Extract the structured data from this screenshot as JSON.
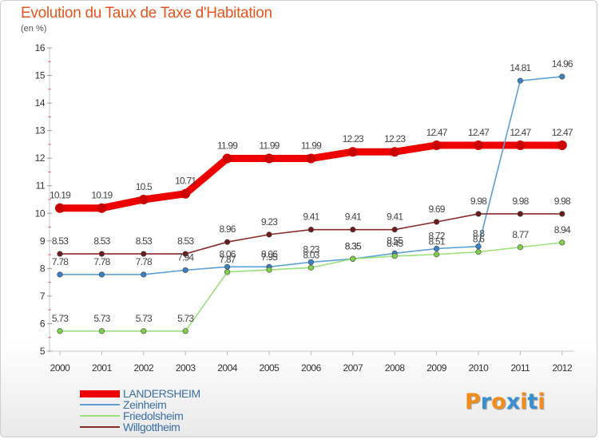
{
  "title": "Evolution du Taux de Taxe d'Habitation",
  "subtitle": "(en %)",
  "logo": {
    "text": "Proxiti",
    "colors": [
      "#f28c1a",
      "#3a8fd0",
      "#f28c1a",
      "#3a8fd0",
      "#f28c1a",
      "#3a8fd0",
      "#f28c1a"
    ]
  },
  "chart_data": {
    "type": "line",
    "title": "Evolution du Taux de Taxe d'Habitation",
    "ylabel": "(en %)",
    "xlabel": "",
    "categories": [
      "2000",
      "2001",
      "2002",
      "2003",
      "2004",
      "2005",
      "2006",
      "2007",
      "2008",
      "2009",
      "2010",
      "2011",
      "2012"
    ],
    "ylim": [
      5,
      16
    ],
    "yticks": [
      "5",
      "6",
      "7",
      "8",
      "9",
      "10",
      "11",
      "12",
      "13",
      "14",
      "15",
      "16"
    ],
    "grid": false,
    "legend": "bottom-left",
    "series": [
      {
        "name": "LANDERSHEIM",
        "color": "#ee0000",
        "dot": "#cc0000",
        "thick": true,
        "values": [
          10.19,
          10.19,
          10.5,
          10.71,
          11.99,
          11.99,
          11.99,
          12.23,
          12.23,
          12.47,
          12.47,
          12.47,
          12.47
        ],
        "labels": [
          "10.19",
          "10.19",
          "10.5",
          "10.71",
          "11.99",
          "11.99",
          "11.99",
          "12.23",
          "12.23",
          "12.47",
          "12.47",
          "12.47",
          "12.47"
        ]
      },
      {
        "name": "Zeinheim",
        "color": "#5b9fd6",
        "dot": "#3a7fc0",
        "thick": false,
        "values": [
          7.78,
          7.78,
          7.78,
          7.94,
          8.06,
          8.06,
          8.23,
          8.35,
          8.55,
          8.72,
          8.8,
          14.81,
          14.96
        ],
        "labels": [
          "7.78",
          "7.78",
          "7.78",
          "7.94",
          "8.06",
          "8.06",
          "8.23",
          "8.35",
          "8.55",
          "8.72",
          "8.8",
          "14.81",
          "14.96"
        ]
      },
      {
        "name": "Friedolsheim",
        "color": "#9be07a",
        "dot": "#7fcf4d",
        "thick": false,
        "values": [
          5.73,
          5.73,
          5.73,
          5.73,
          7.87,
          7.95,
          8.03,
          8.35,
          8.45,
          8.51,
          8.6,
          8.77,
          8.94
        ],
        "labels": [
          "5.73",
          "5.73",
          "5.73",
          "5.73",
          "7.87",
          "7.95",
          "8.03",
          "8.35",
          "8.45",
          "8.51",
          "8.6",
          "8.77",
          "8.94"
        ]
      },
      {
        "name": "Willgottheim",
        "color": "#8a2a2a",
        "dot": "#6b1b1b",
        "thick": false,
        "values": [
          8.53,
          8.53,
          8.53,
          8.53,
          8.96,
          9.23,
          9.41,
          9.41,
          9.41,
          9.69,
          9.98,
          9.98,
          9.98
        ],
        "labels": [
          "8.53",
          "8.53",
          "8.53",
          "8.53",
          "8.96",
          "9.23",
          "9.41",
          "9.41",
          "9.41",
          "9.69",
          "9.98",
          "9.98",
          "9.98"
        ]
      }
    ]
  }
}
